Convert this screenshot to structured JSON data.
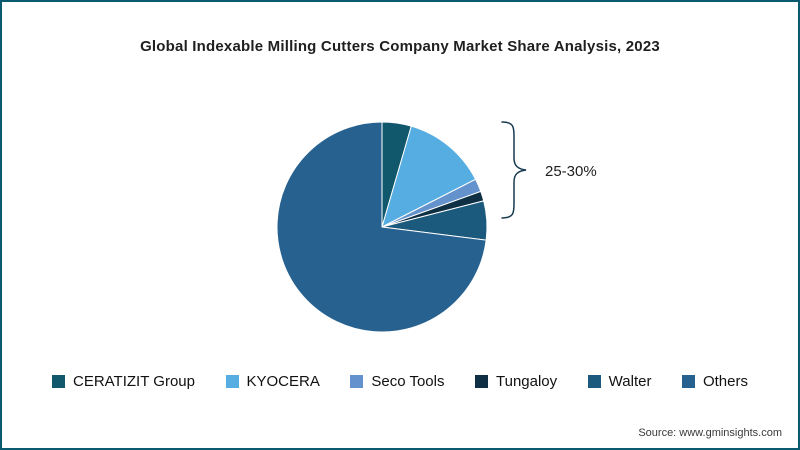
{
  "page": {
    "source": "Source: www.gminsights.com",
    "frame_border_color": "#0a5a70"
  },
  "chart_data": {
    "type": "pie",
    "title": "Global Indexable Milling Cutters Company Market Share Analysis, 2023",
    "legend_position": "bottom",
    "start_angle_deg": 0,
    "direction": "clockwise",
    "annotation": {
      "label": "25-30%",
      "refers_to": "combined share of named companies (CERATIZIT Group, KYOCERA, Seco Tools, Tungaloy, Walter)"
    },
    "slices": [
      {
        "label": "CERATIZIT Group",
        "value": 4.5,
        "color": "#12586d"
      },
      {
        "label": "KYOCERA",
        "value": 13,
        "color": "#55ade2"
      },
      {
        "label": "Seco Tools",
        "value": 2,
        "color": "#6392cc"
      },
      {
        "label": "Tungaloy",
        "value": 1.5,
        "color": "#0e2f44"
      },
      {
        "label": "Walter",
        "value": 6,
        "color": "#1b5a7c"
      },
      {
        "label": "Others",
        "value": 73,
        "color": "#27618f"
      }
    ]
  }
}
